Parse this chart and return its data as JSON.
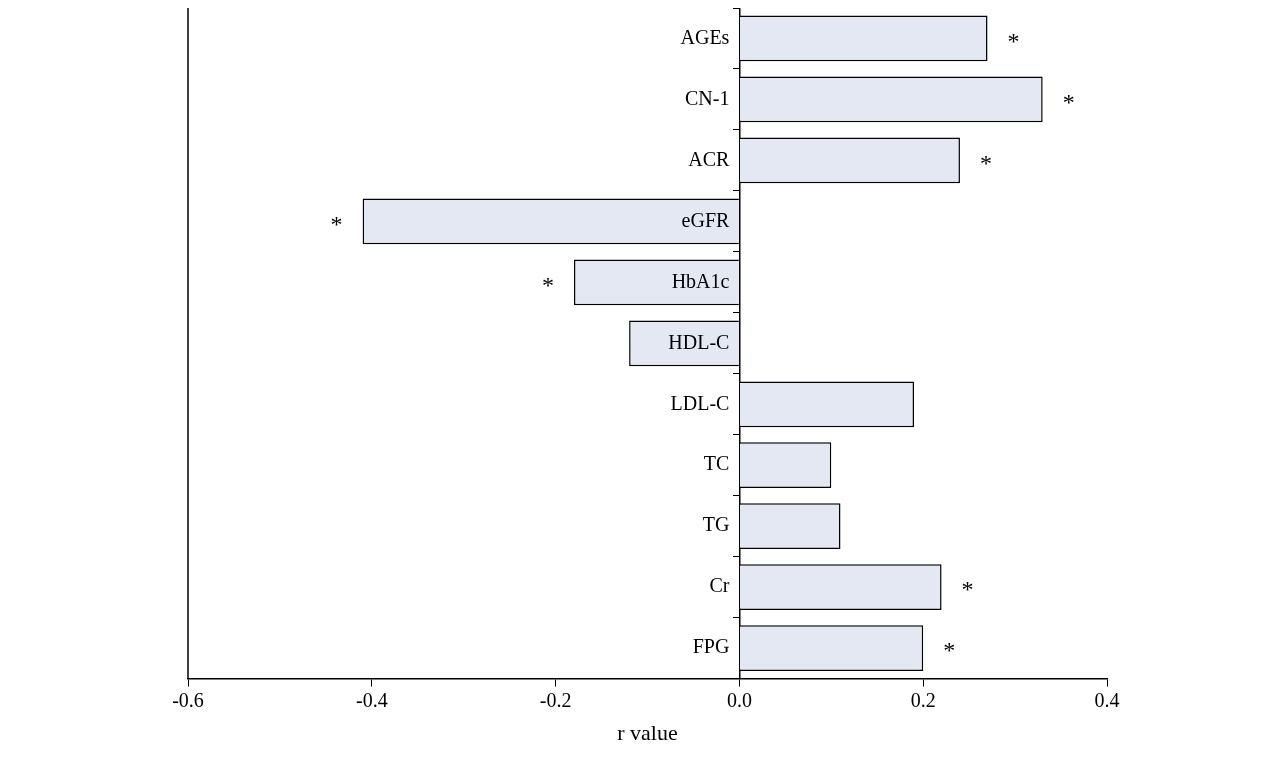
{
  "chart_data": {
    "type": "bar",
    "orientation": "horizontal",
    "xlabel": "r value",
    "categories": [
      "AGEs",
      "CN-1",
      "ACR",
      "eGFR",
      "HbA1c",
      "HDL-C",
      "LDL-C",
      "TC",
      "TG",
      "Cr",
      "FPG"
    ],
    "values": [
      0.27,
      0.33,
      0.24,
      -0.41,
      -0.18,
      -0.12,
      0.19,
      0.1,
      0.11,
      0.22,
      0.2
    ],
    "color": "#e3e8f3",
    "xlim": [
      -0.6,
      0.4
    ],
    "xticks": [
      {
        "value": -0.6,
        "label": "-0.6"
      },
      {
        "value": -0.4,
        "label": "-0.4"
      },
      {
        "value": -0.2,
        "label": "-0.2"
      },
      {
        "value": 0,
        "label": "0.0"
      },
      {
        "value": 0.2,
        "label": "0.2"
      },
      {
        "value": 0.4,
        "label": "0.4"
      }
    ],
    "grid": false,
    "legend": false,
    "annotations": [
      {
        "text": "*",
        "x": 0.27,
        "y": "AGEs"
      },
      {
        "text": "*",
        "x": 0.33,
        "y": "CN-1"
      },
      {
        "text": "*",
        "x": 0.24,
        "y": "ACR"
      },
      {
        "text": "*",
        "x": -0.41,
        "y": "eGFR"
      },
      {
        "text": "*",
        "x": -0.18,
        "y": "HbA1c"
      },
      {
        "text": "*",
        "x": 0.22,
        "y": "Cr"
      },
      {
        "text": "*",
        "x": 0.2,
        "y": "FPG"
      }
    ]
  }
}
